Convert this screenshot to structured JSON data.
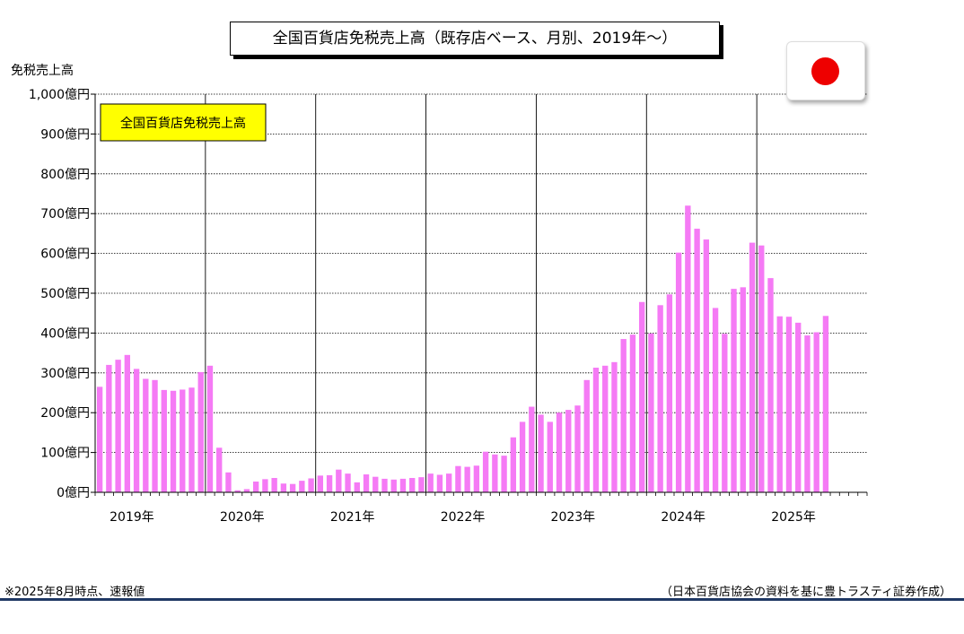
{
  "header": {
    "title": "全国百貨店免税売上高（既存店ベース、月別、2019年～）"
  },
  "flag": {
    "icon": "japan-flag-icon",
    "color": "#ee0000"
  },
  "footer": {
    "note": "※2025年8月時点、速報値",
    "source": "（日本百貨店協会の資料を基に豊トラスティ証券作成）"
  },
  "chart_data": {
    "type": "bar",
    "title": "全国百貨店免税売上高（既存店ベース、月別、2019年～）",
    "ylabel": "免税売上高",
    "xlabel": "",
    "legend": {
      "label": "全国百貨店免税売上高",
      "placement": "top-left"
    },
    "ylim": [
      0,
      1000
    ],
    "yticks": [
      0,
      100,
      200,
      300,
      400,
      500,
      600,
      700,
      800,
      900,
      1000
    ],
    "ytick_labels": [
      "0億円",
      "100億円",
      "200億円",
      "300億円",
      "400億円",
      "500億円",
      "600億円",
      "700億円",
      "800億円",
      "900億円",
      "1,000億円"
    ],
    "year_labels": [
      "2019年",
      "2020年",
      "2021年",
      "2022年",
      "2023年",
      "2024年",
      "2025年"
    ],
    "grid": true,
    "bar_color": "#f57af5",
    "legend_color": "#ffff00",
    "series": [
      {
        "name": "全国百貨店免税売上高",
        "months": [
          "2019-01",
          "2019-02",
          "2019-03",
          "2019-04",
          "2019-05",
          "2019-06",
          "2019-07",
          "2019-08",
          "2019-09",
          "2019-10",
          "2019-11",
          "2019-12",
          "2020-01",
          "2020-02",
          "2020-03",
          "2020-04",
          "2020-05",
          "2020-06",
          "2020-07",
          "2020-08",
          "2020-09",
          "2020-10",
          "2020-11",
          "2020-12",
          "2021-01",
          "2021-02",
          "2021-03",
          "2021-04",
          "2021-05",
          "2021-06",
          "2021-07",
          "2021-08",
          "2021-09",
          "2021-10",
          "2021-11",
          "2021-12",
          "2022-01",
          "2022-02",
          "2022-03",
          "2022-04",
          "2022-05",
          "2022-06",
          "2022-07",
          "2022-08",
          "2022-09",
          "2022-10",
          "2022-11",
          "2022-12",
          "2023-01",
          "2023-02",
          "2023-03",
          "2023-04",
          "2023-05",
          "2023-06",
          "2023-07",
          "2023-08",
          "2023-09",
          "2023-10",
          "2023-11",
          "2023-12",
          "2024-01",
          "2024-02",
          "2024-03",
          "2024-04",
          "2024-05",
          "2024-06",
          "2024-07",
          "2024-08",
          "2024-09",
          "2024-10",
          "2024-11",
          "2024-12",
          "2025-01",
          "2025-02",
          "2025-03",
          "2025-04",
          "2025-05",
          "2025-06",
          "2025-07",
          "2025-08"
        ],
        "values": [
          265,
          320,
          333,
          345,
          310,
          285,
          282,
          257,
          255,
          258,
          263,
          302,
          318,
          112,
          50,
          5,
          8,
          27,
          33,
          36,
          22,
          21,
          29,
          35,
          42,
          43,
          57,
          47,
          25,
          45,
          39,
          34,
          32,
          34,
          36,
          38,
          47,
          44,
          47,
          66,
          64,
          67,
          102,
          95,
          92,
          138,
          177,
          215,
          195,
          177,
          200,
          207,
          218,
          282,
          313,
          318,
          327,
          385,
          396,
          478,
          399,
          470,
          497,
          602,
          720,
          662,
          635,
          463,
          398,
          511,
          515,
          627,
          620,
          538,
          442,
          441,
          426,
          394,
          402,
          443
        ]
      }
    ]
  }
}
